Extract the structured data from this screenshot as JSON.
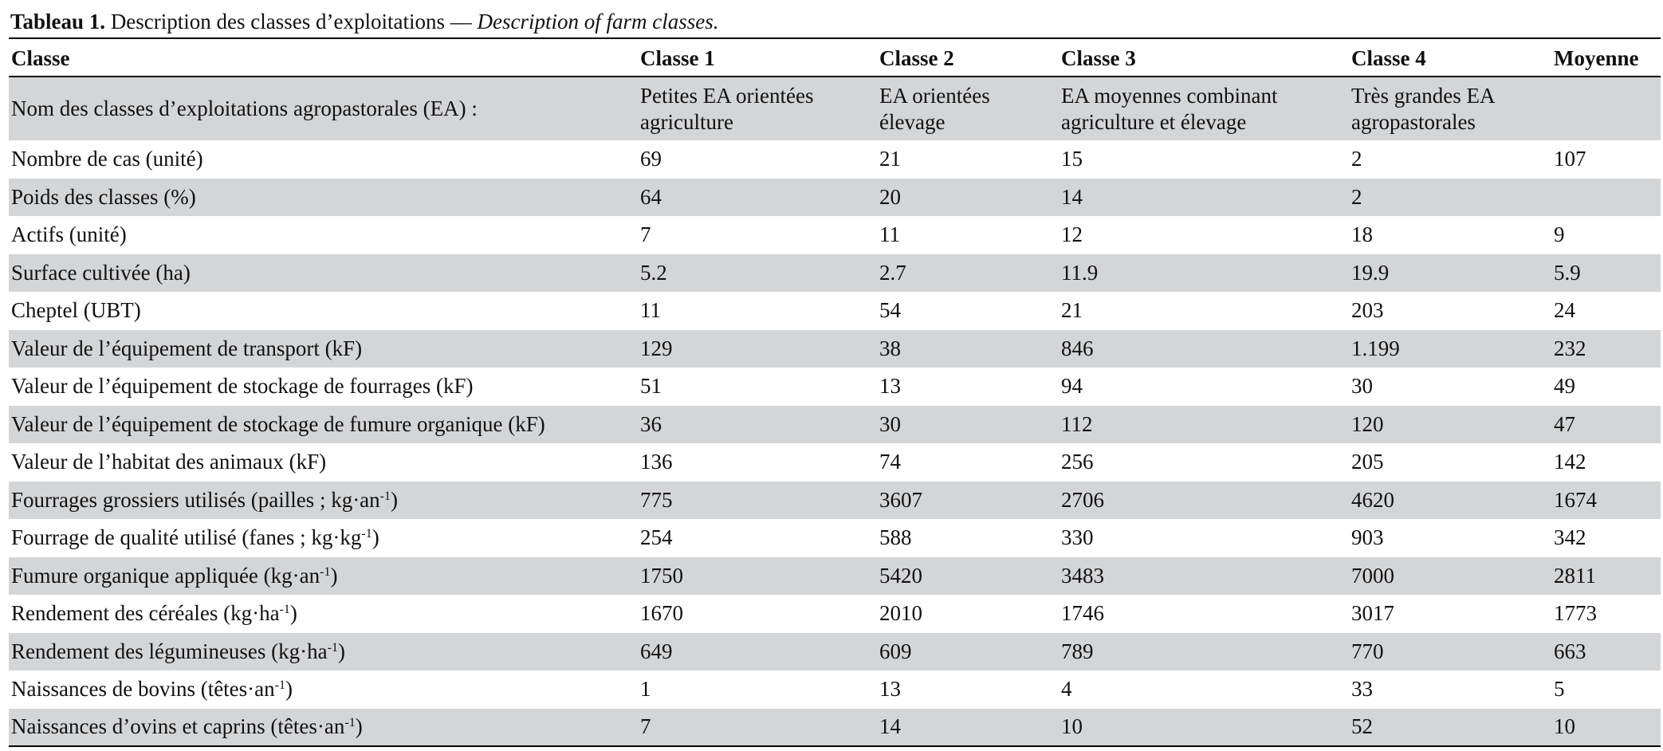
{
  "caption": {
    "label": "Tableau 1.",
    "text": "Description des classes d’exploitations —",
    "text_en": "Description of farm classes."
  },
  "table": {
    "columns": [
      "Classe",
      "Classe 1",
      "Classe 2",
      "Classe 3",
      "Classe 4",
      "Moyenne"
    ],
    "rows": [
      {
        "label": "Nom des classes d’exploitations agropastorales (EA) :",
        "values": [
          "Petites EA orientées agriculture",
          "EA orientées élevage",
          "EA moyennes combinant agriculture et élevage",
          "Très grandes EA agropastorales",
          null
        ]
      },
      {
        "label": "Nombre de cas (unité)",
        "values": [
          "69",
          "21",
          "15",
          "2",
          "107"
        ]
      },
      {
        "label": "Poids des classes (%)",
        "values": [
          "64",
          "20",
          "14",
          "2",
          null
        ]
      },
      {
        "label": "Actifs (unité)",
        "values": [
          "7",
          "11",
          "12",
          "18",
          "9"
        ]
      },
      {
        "label": "Surface cultivée (ha)",
        "values": [
          "5.2",
          "2.7",
          "11.9",
          "19.9",
          "5.9"
        ]
      },
      {
        "label": "Cheptel (UBT)",
        "values": [
          "11",
          "54",
          "21",
          "203",
          "24"
        ]
      },
      {
        "label": "Valeur de l’équipement de transport (kF)",
        "values": [
          "129",
          "38",
          "846",
          "1.199",
          "232"
        ]
      },
      {
        "label": "Valeur de l’équipement de stockage de fourrages (kF)",
        "values": [
          "51",
          "13",
          "94",
          "30",
          "49"
        ]
      },
      {
        "label": "Valeur de l’équipement de stockage de fumure organique (kF)",
        "values": [
          "36",
          "30",
          "112",
          "120",
          "47"
        ]
      },
      {
        "label": "Valeur de l’habitat des animaux (kF)",
        "values": [
          "136",
          "74",
          "256",
          "205",
          "142"
        ]
      },
      {
        "label": "Fourrages grossiers utilisés (pailles ; kg·an",
        "label_sup": "-1",
        "label_end": ")",
        "values": [
          "775",
          "3607",
          "2706",
          "4620",
          "1674"
        ]
      },
      {
        "label": "Fourrage de qualité utilisé (fanes ; kg·kg",
        "label_sup": "-1",
        "label_end": ")",
        "values": [
          "254",
          "588",
          "330",
          "903",
          "342"
        ]
      },
      {
        "label": "Fumure organique appliquée (kg·an",
        "label_sup": "-1",
        "label_end": ")",
        "values": [
          "1750",
          "5420",
          "3483",
          "7000",
          "2811"
        ]
      },
      {
        "label": "Rendement des céréales (kg·ha",
        "label_sup": "-1",
        "label_end": ")",
        "values": [
          "1670",
          "2010",
          "1746",
          "3017",
          "1773"
        ]
      },
      {
        "label": "Rendement des légumineuses (kg·ha",
        "label_sup": "-1",
        "label_end": ")",
        "values": [
          "649",
          "609",
          "789",
          "770",
          "663"
        ]
      },
      {
        "label": "Naissances de bovins (têtes·an",
        "label_sup": "-1",
        "label_end": ")",
        "values": [
          "1",
          "13",
          "4",
          "33",
          "5"
        ]
      },
      {
        "label": "Naissances d’ovins et caprins (têtes·an",
        "label_sup": "-1",
        "label_end": ")",
        "values": [
          "7",
          "14",
          "10",
          "52",
          "10"
        ]
      }
    ]
  }
}
